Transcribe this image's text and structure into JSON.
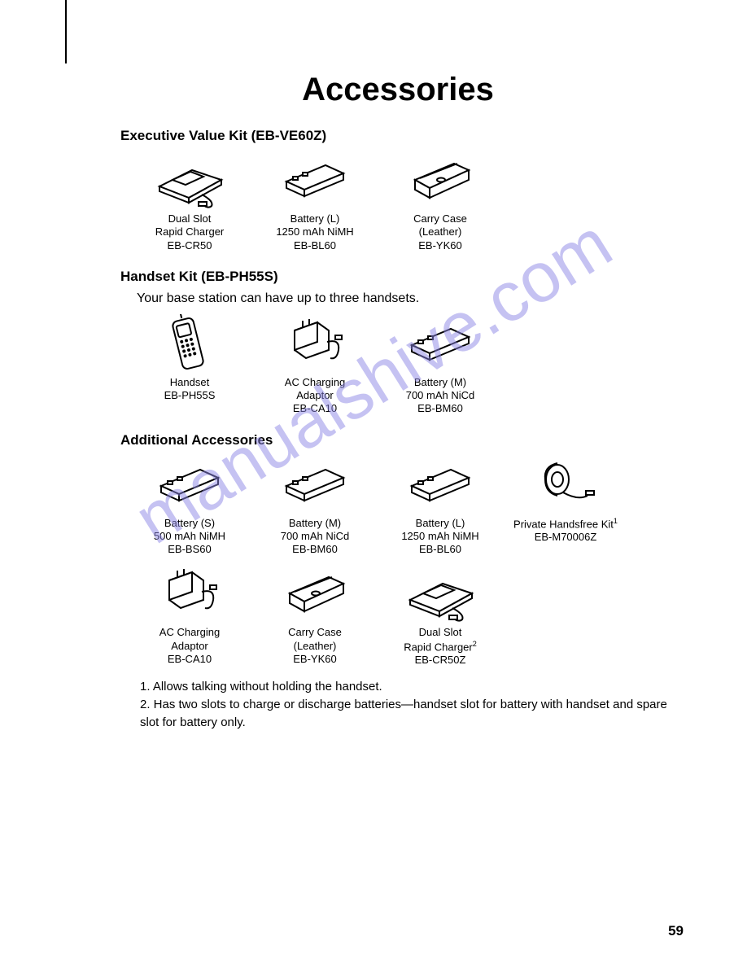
{
  "title": "Accessories",
  "page_number": "59",
  "watermark": "manualshive.com",
  "sections": {
    "executive": {
      "heading": "Executive Value Kit (EB-VE60Z)",
      "items": [
        {
          "name": "Dual Slot\nRapid Charger\nEB-CR50",
          "icon": "charger-cradle"
        },
        {
          "name": "Battery (L)\n1250 mAh NiMH\nEB-BL60",
          "icon": "battery"
        },
        {
          "name": "Carry Case\n(Leather)\nEB-YK60",
          "icon": "case"
        }
      ]
    },
    "handset": {
      "heading": "Handset Kit (EB-PH55S)",
      "subtitle": "Your base station can have up to three handsets.",
      "items": [
        {
          "name": "Handset\nEB-PH55S",
          "icon": "handset"
        },
        {
          "name": "AC Charging\nAdaptor\nEB-CA10",
          "icon": "ac-adaptor"
        },
        {
          "name": "Battery (M)\n700 mAh NiCd\nEB-BM60",
          "icon": "battery"
        }
      ]
    },
    "additional": {
      "heading": "Additional Accessories",
      "row1": [
        {
          "name": "Battery (S)\n500 mAh NiMH\nEB-BS60",
          "icon": "battery"
        },
        {
          "name": "Battery (M)\n700 mAh NiCd\nEB-BM60",
          "icon": "battery"
        },
        {
          "name": "Battery (L)\n1250 mAh NiMH\nEB-BL60",
          "icon": "battery"
        },
        {
          "name": "Private Handsfree Kit",
          "sup": "1",
          "after": "\nEB-M70006Z",
          "icon": "earpiece"
        }
      ],
      "row2": [
        {
          "name": "AC Charging\nAdaptor\nEB-CA10",
          "icon": "ac-adaptor"
        },
        {
          "name": "Carry Case\n(Leather)\nEB-YK60",
          "icon": "case"
        },
        {
          "name": "Dual Slot\nRapid Charger",
          "sup": "2",
          "after": "\nEB-CR50Z",
          "icon": "charger-cradle"
        }
      ]
    }
  },
  "footnotes": [
    "1. Allows talking without holding the handset.",
    "2. Has two slots to charge or discharge batteries—handset slot for battery with handset and spare slot for battery only."
  ]
}
